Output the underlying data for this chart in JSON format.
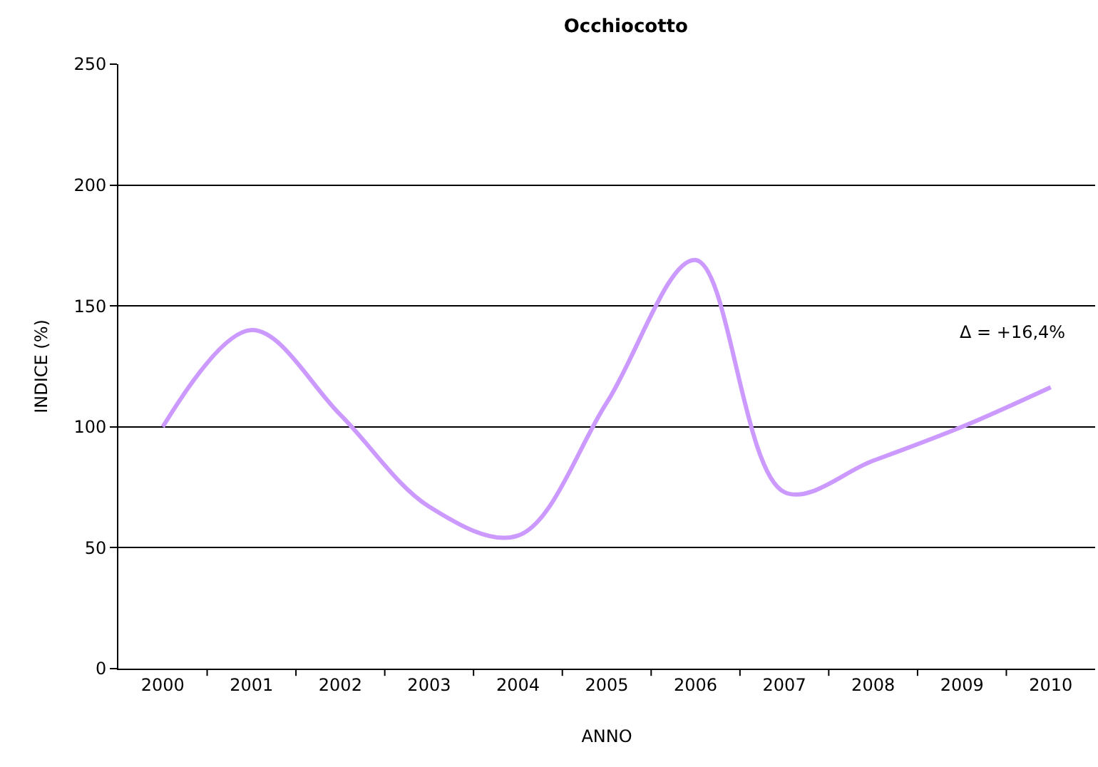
{
  "chart_data": {
    "type": "line",
    "title": "Occhiocotto",
    "xlabel": "ANNO",
    "ylabel": "INDICE (%)",
    "categories": [
      "2000",
      "2001",
      "2002",
      "2003",
      "2004",
      "2005",
      "2006",
      "2007",
      "2008",
      "2009",
      "2010"
    ],
    "series": [
      {
        "color": "#cc99ff",
        "values": [
          100,
          140,
          105,
          67,
          55,
          110,
          169,
          73,
          86,
          100,
          116.4
        ]
      }
    ],
    "ylim": [
      0,
      250
    ],
    "yticks": [
      0,
      50,
      100,
      150,
      200,
      250
    ],
    "grid": "y",
    "marker": "none",
    "line_style": "solid",
    "annotations": [
      {
        "text": "Δ = +16,4%",
        "x": "2010",
        "y": 116.4
      }
    ]
  }
}
